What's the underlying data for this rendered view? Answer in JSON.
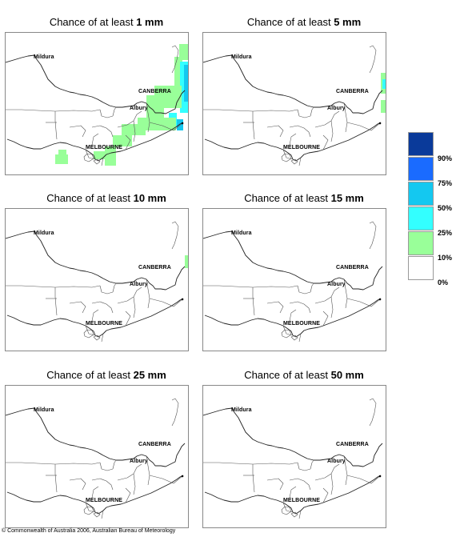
{
  "panels": [
    {
      "title_prefix": "Chance of at least ",
      "title_amount": "1 mm"
    },
    {
      "title_prefix": "Chance of at least ",
      "title_amount": "5 mm"
    },
    {
      "title_prefix": "Chance of at least ",
      "title_amount": "10 mm"
    },
    {
      "title_prefix": "Chance of at least ",
      "title_amount": "15 mm"
    },
    {
      "title_prefix": "Chance of at least ",
      "title_amount": "25 mm"
    },
    {
      "title_prefix": "Chance of at least ",
      "title_amount": "50 mm"
    }
  ],
  "places": {
    "mildura": "Mildura",
    "canberra": "CANBERRA",
    "albury": "Albury",
    "melbourne": "MELBOURNE"
  },
  "legend": {
    "items": [
      {
        "label": "90%",
        "color": "#0a3a9a"
      },
      {
        "label": "75%",
        "color": "#1a6bff"
      },
      {
        "label": "50%",
        "color": "#14c8f0"
      },
      {
        "label": "25%",
        "color": "#33ffff"
      },
      {
        "label": "10%",
        "color": "#99ff99"
      },
      {
        "label": "0%",
        "color": "#ffffff"
      }
    ]
  },
  "footer": "© Commonwealth of Australia 2006, Australian Bureau of Meteorology"
}
